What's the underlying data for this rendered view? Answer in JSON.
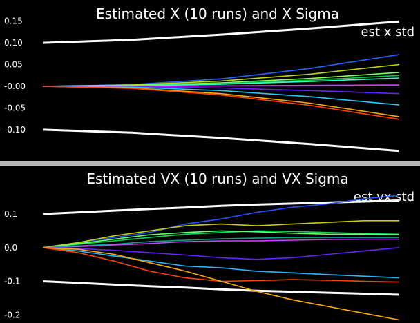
{
  "chart_data": [
    {
      "type": "line",
      "title": "Estimated X (10 runs) and X Sigma",
      "legend_label": "est x std",
      "legend_position": "top-right",
      "grid": false,
      "background": "#000000",
      "xlim": [
        0,
        1
      ],
      "ylim": [
        -0.17,
        0.17
      ],
      "yticks": [
        {
          "value": 0.15,
          "label": "0.15"
        },
        {
          "value": 0.1,
          "label": "0.10"
        },
        {
          "value": 0.05,
          "label": "0.05"
        },
        {
          "value": 0.0,
          "label": "-0.00"
        },
        {
          "value": -0.05,
          "label": "-0.05"
        },
        {
          "value": -0.1,
          "label": "-0.10"
        }
      ],
      "x": [
        0,
        0.25,
        0.5,
        0.75,
        1
      ],
      "sigma_band": {
        "color": "#ffffff",
        "upper": [
          0.1,
          0.107,
          0.119,
          0.133,
          0.149
        ],
        "lower": [
          -0.1,
          -0.107,
          -0.119,
          -0.133,
          -0.149
        ]
      },
      "series": [
        {
          "color": "#2266ff",
          "values": [
            0,
            0.004,
            0.017,
            0.041,
            0.073
          ]
        },
        {
          "color": "#bbdd00",
          "values": [
            0,
            0.003,
            0.012,
            0.028,
            0.05
          ]
        },
        {
          "color": "#88ff55",
          "values": [
            0,
            0.002,
            0.008,
            0.018,
            0.032
          ]
        },
        {
          "color": "#00cc44",
          "values": [
            0,
            0.001,
            0.006,
            0.014,
            0.025
          ]
        },
        {
          "color": "#33ffcc",
          "values": [
            0,
            0.001,
            0.005,
            0.011,
            0.019
          ]
        },
        {
          "color": "#cc44ff",
          "values": [
            0,
            0.0,
            0.001,
            0.002,
            0.003
          ]
        },
        {
          "color": "#6622ff",
          "values": [
            0,
            -0.001,
            -0.004,
            -0.01,
            -0.017
          ]
        },
        {
          "color": "#22ccff",
          "values": [
            0,
            -0.002,
            -0.01,
            -0.024,
            -0.043
          ]
        },
        {
          "color": "#ffaa00",
          "values": [
            0,
            -0.004,
            -0.017,
            -0.039,
            -0.07
          ]
        },
        {
          "color": "#ff4400",
          "values": [
            0,
            -0.005,
            -0.02,
            -0.044,
            -0.076
          ]
        }
      ]
    },
    {
      "type": "line",
      "title": "Estimated VX (10 runs) and VX Sigma",
      "legend_label": "est vx std",
      "legend_position": "top-right",
      "grid": false,
      "background": "#000000",
      "xlim": [
        0,
        1
      ],
      "ylim": [
        -0.22,
        0.18
      ],
      "yticks": [
        {
          "value": 0.1,
          "label": "0.1"
        },
        {
          "value": 0.0,
          "label": "0.0"
        },
        {
          "value": -0.1,
          "label": "-0.1"
        },
        {
          "value": -0.2,
          "label": "-0.2"
        }
      ],
      "x": [
        0,
        0.1,
        0.2,
        0.3,
        0.4,
        0.5,
        0.6,
        0.7,
        0.8,
        0.9,
        1
      ],
      "sigma_band": {
        "color": "#ffffff",
        "upper": [
          0.1,
          0.105,
          0.11,
          0.115,
          0.119,
          0.124,
          0.128,
          0.131,
          0.134,
          0.137,
          0.14
        ],
        "lower": [
          -0.1,
          -0.105,
          -0.11,
          -0.115,
          -0.119,
          -0.124,
          -0.128,
          -0.131,
          -0.134,
          -0.137,
          -0.14
        ]
      },
      "series": [
        {
          "color": "#2255ff",
          "values": [
            0,
            0.015,
            0.03,
            0.045,
            0.07,
            0.085,
            0.105,
            0.12,
            0.13,
            0.145,
            0.155
          ]
        },
        {
          "color": "#cccc00",
          "values": [
            0,
            0.015,
            0.035,
            0.05,
            0.065,
            0.07,
            0.065,
            0.07,
            0.075,
            0.08,
            0.08
          ]
        },
        {
          "color": "#00dd55",
          "values": [
            0,
            0.01,
            0.02,
            0.03,
            0.04,
            0.045,
            0.05,
            0.048,
            0.045,
            0.042,
            0.04
          ]
        },
        {
          "color": "#66ff66",
          "values": [
            0,
            0.012,
            0.025,
            0.038,
            0.045,
            0.05,
            0.047,
            0.043,
            0.04,
            0.04,
            0.038
          ]
        },
        {
          "color": "#00aa88",
          "values": [
            0,
            0.005,
            0.01,
            0.018,
            0.022,
            0.026,
            0.028,
            0.03,
            0.03,
            0.03,
            0.03
          ]
        },
        {
          "color": "#cc44ff",
          "values": [
            0,
            0.003,
            0.008,
            0.012,
            0.018,
            0.02,
            0.02,
            0.022,
            0.024,
            0.025,
            0.025
          ]
        },
        {
          "color": "#6622ff",
          "values": [
            0,
            -0.003,
            -0.008,
            -0.015,
            -0.022,
            -0.03,
            -0.035,
            -0.03,
            -0.02,
            -0.01,
            0.0
          ]
        },
        {
          "color": "#22bbff",
          "values": [
            0,
            -0.01,
            -0.025,
            -0.04,
            -0.055,
            -0.06,
            -0.07,
            -0.075,
            -0.08,
            -0.085,
            -0.09
          ]
        },
        {
          "color": "#ff4400",
          "values": [
            0,
            -0.015,
            -0.04,
            -0.07,
            -0.09,
            -0.1,
            -0.098,
            -0.095,
            -0.097,
            -0.1,
            -0.102
          ]
        },
        {
          "color": "#ffaa00",
          "values": [
            0,
            -0.005,
            -0.02,
            -0.045,
            -0.07,
            -0.1,
            -0.13,
            -0.155,
            -0.175,
            -0.195,
            -0.215
          ]
        }
      ]
    }
  ]
}
